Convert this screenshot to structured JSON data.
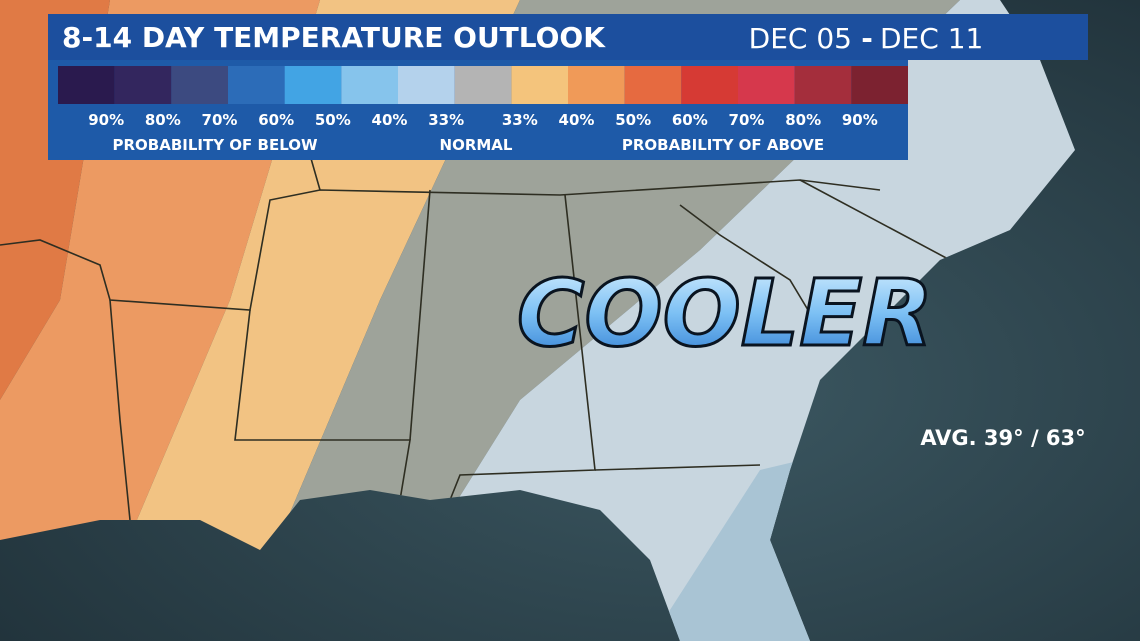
{
  "header": {
    "title": "8-14 DAY TEMPERATURE OUTLOOK",
    "date_start": "DEC 05",
    "date_separator": "-",
    "date_end": "DEC 11"
  },
  "legend": {
    "colors": [
      "#2a1a4e",
      "#33265e",
      "#3c4a80",
      "#2c6cb8",
      "#42a4e4",
      "#86c4ec",
      "#b4d2ec",
      "#b4b4b4",
      "#f4c47c",
      "#f09a58",
      "#e66a40",
      "#d63a34",
      "#d6384c",
      "#a42e3c",
      "#7c2230"
    ],
    "labels": [
      "90%",
      "80%",
      "70%",
      "60%",
      "50%",
      "40%",
      "33%",
      "33%",
      "40%",
      "50%",
      "60%",
      "70%",
      "80%",
      "90%"
    ],
    "groups": [
      "PROBABILITY OF BELOW",
      "NORMAL",
      "PROBABILITY OF ABOVE"
    ]
  },
  "map": {
    "headline": "COOLER",
    "average": "AVG. 39° / 63°"
  }
}
